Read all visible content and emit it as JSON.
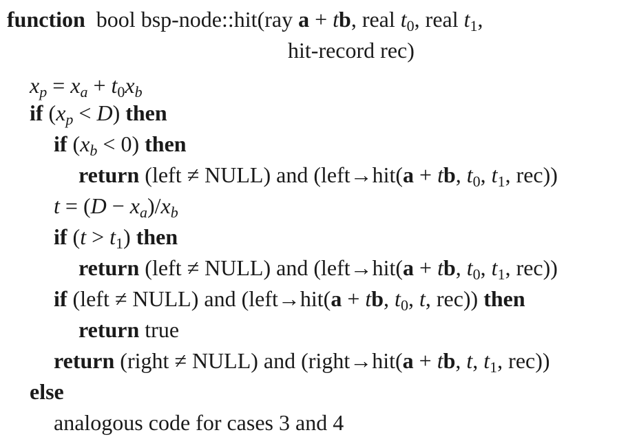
{
  "algorithm": {
    "signature": {
      "keyword": "function",
      "return_type": "bool",
      "name": "bsp-node::hit",
      "ray_label": "ray",
      "real_label": "real",
      "param_line2": "hit-record rec)"
    },
    "keywords": {
      "if": "if",
      "then": "then",
      "return": "return",
      "else": "else",
      "and": "and"
    },
    "terms": {
      "left": "left",
      "right": "right",
      "null": "NULL",
      "hit": "hit",
      "rec": "rec",
      "true": "true"
    },
    "comment": "analogous code for cases 3 and 4"
  }
}
